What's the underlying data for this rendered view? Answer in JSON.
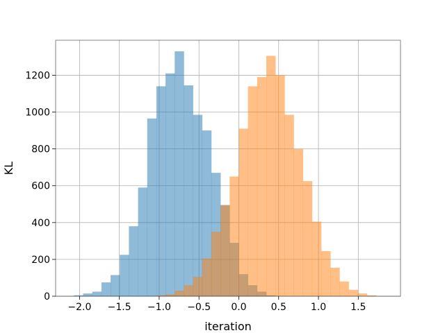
{
  "chart_data": {
    "type": "bar",
    "title": "",
    "xlabel": "iteration",
    "ylabel": "KL",
    "xlim": [
      -2.3,
      2.03
    ],
    "ylim": [
      0,
      1390
    ],
    "grid": true,
    "legend": "none",
    "x_ticks": [
      -2.0,
      -1.5,
      -1.0,
      -0.5,
      0.0,
      0.5,
      1.0,
      1.5
    ],
    "x_tick_labels": [
      "−2.0",
      "−1.5",
      "−1.0",
      "−0.5",
      "0.0",
      "0.5",
      "1.0",
      "1.5"
    ],
    "y_ticks": [
      0,
      200,
      400,
      600,
      800,
      1000,
      1200
    ],
    "y_tick_labels": [
      "0",
      "200",
      "400",
      "600",
      "800",
      "1000",
      "1200"
    ],
    "bin_width": 0.115,
    "series": [
      {
        "color": "#1f77b4",
        "opacity": 0.5,
        "bin_starts": [
          -2.07,
          -1.955,
          -1.84,
          -1.725,
          -1.61,
          -1.495,
          -1.38,
          -1.265,
          -1.15,
          -1.035,
          -0.92,
          -0.805,
          -0.69,
          -0.575,
          -0.46,
          -0.345,
          -0.23,
          -0.115,
          0.0,
          0.115,
          0.23,
          0.345
        ],
        "counts": [
          5,
          15,
          25,
          75,
          115,
          225,
          380,
          590,
          965,
          1140,
          1210,
          1330,
          1145,
          985,
          900,
          670,
          495,
          290,
          120,
          60,
          25,
          5
        ]
      },
      {
        "color": "#ff7f0e",
        "opacity": 0.5,
        "bin_starts": [
          -1.035,
          -0.92,
          -0.805,
          -0.69,
          -0.575,
          -0.46,
          -0.345,
          -0.23,
          -0.115,
          0.0,
          0.115,
          0.23,
          0.345,
          0.46,
          0.575,
          0.69,
          0.805,
          0.92,
          1.035,
          1.15,
          1.265,
          1.38,
          1.495,
          1.61
        ],
        "counts": [
          5,
          10,
          30,
          60,
          105,
          205,
          350,
          495,
          650,
          910,
          1140,
          1190,
          1305,
          1200,
          985,
          800,
          625,
          405,
          245,
          155,
          80,
          35,
          15,
          5
        ]
      }
    ]
  }
}
